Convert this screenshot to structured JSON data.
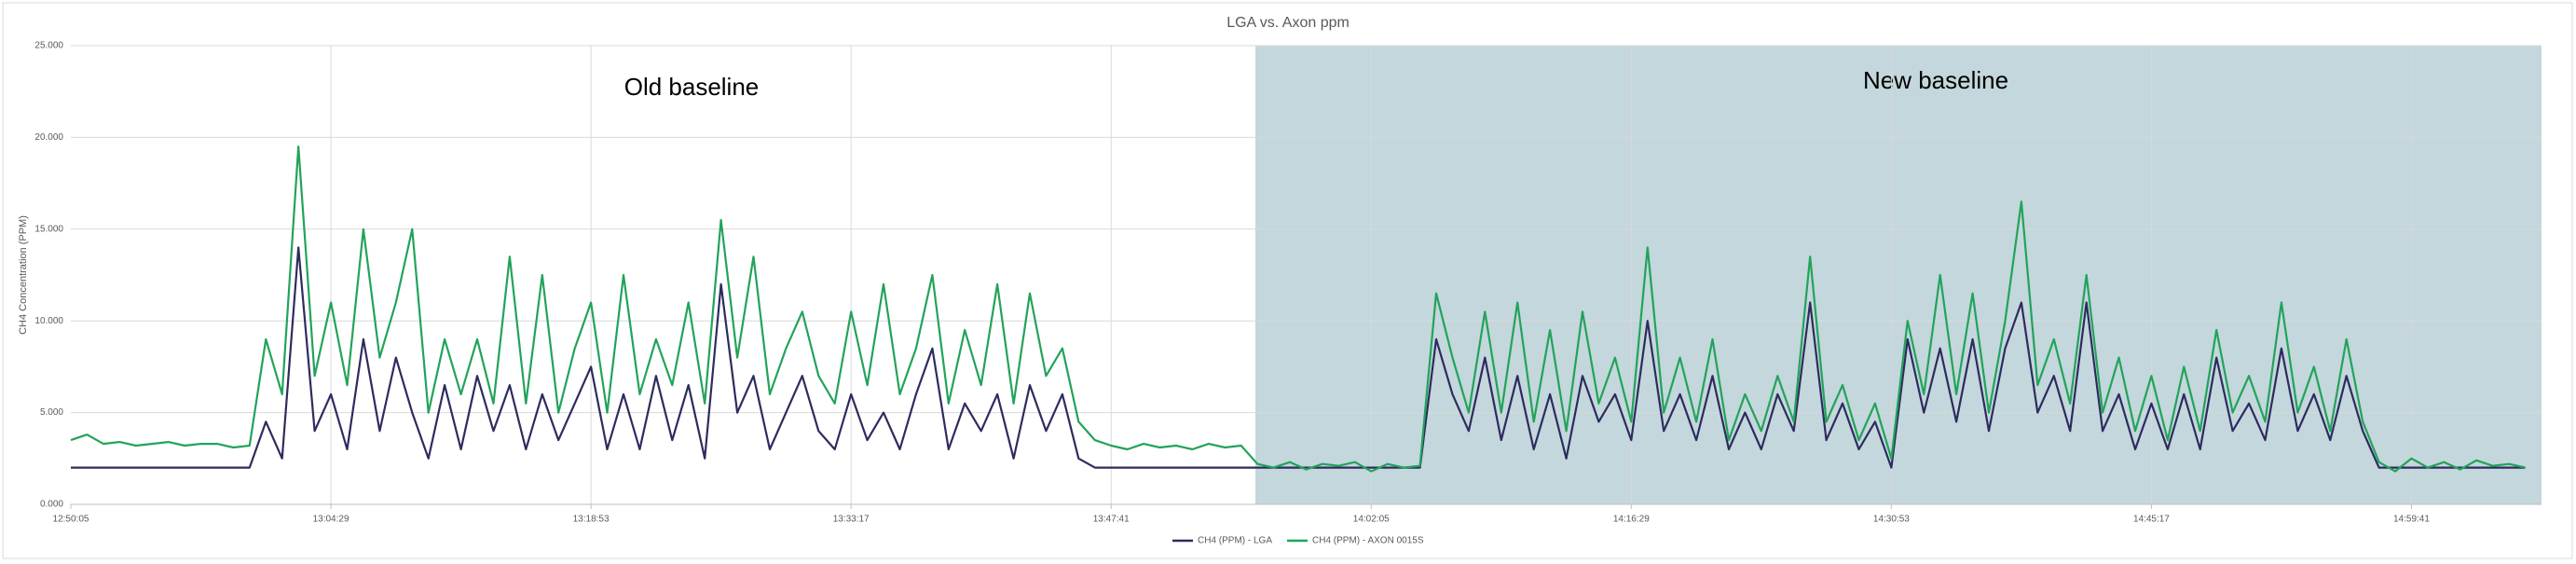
{
  "chart_data": {
    "type": "line",
    "title": "LGA vs. Axon ppm",
    "y_label": "CH4 Concentration (PPM)",
    "annotations": [
      "Old baseline",
      "New baseline"
    ],
    "x": [
      "12:50:05",
      null,
      null,
      null,
      null,
      null,
      null,
      null,
      null,
      null,
      null,
      null,
      null,
      null,
      null,
      null,
      "13:04:29",
      null,
      null,
      null,
      null,
      null,
      null,
      null,
      null,
      null,
      null,
      null,
      null,
      null,
      null,
      null,
      "13:18:53",
      null,
      null,
      null,
      null,
      null,
      null,
      null,
      null,
      null,
      null,
      null,
      null,
      null,
      null,
      null,
      "13:33:17",
      null,
      null,
      null,
      null,
      null,
      null,
      null,
      null,
      null,
      null,
      null,
      null,
      null,
      null,
      null,
      "13:47:41",
      null,
      null,
      null,
      null,
      null,
      null,
      null,
      null,
      null,
      null,
      null,
      null,
      null,
      null,
      null,
      "14:02:05",
      null,
      null,
      null,
      null,
      null,
      null,
      null,
      null,
      null,
      null,
      null,
      null,
      null,
      null,
      null,
      "14:16:29",
      null,
      null,
      null,
      null,
      null,
      null,
      null,
      null,
      null,
      null,
      null,
      null,
      null,
      null,
      null,
      "14:30:53",
      null,
      null,
      null,
      null,
      null,
      null,
      null,
      null,
      null,
      null,
      null,
      null,
      null,
      null,
      null,
      "14:45:17",
      null,
      null,
      null,
      null,
      null,
      null,
      null,
      null,
      null,
      null,
      null,
      null,
      null,
      null,
      null,
      "14:59:41",
      null,
      null,
      null,
      null,
      null,
      null,
      null
    ],
    "series": [
      {
        "name": "CH4 (PPM) - LGA",
        "color": "#2e2b5f",
        "values": [
          2000,
          2000,
          2000,
          2000,
          2000,
          2000,
          2000,
          2000,
          2000,
          2000,
          2000,
          2000,
          4500,
          2500,
          14000,
          4000,
          6000,
          3000,
          9000,
          4000,
          8000,
          5000,
          2500,
          6500,
          3000,
          7000,
          4000,
          6500,
          3000,
          6000,
          3500,
          5500,
          7500,
          3000,
          6000,
          3000,
          7000,
          3500,
          6500,
          2500,
          12000,
          5000,
          7000,
          3000,
          5000,
          7000,
          4000,
          3000,
          6000,
          3500,
          5000,
          3000,
          6000,
          8500,
          3000,
          5500,
          4000,
          6000,
          2500,
          6500,
          4000,
          6000,
          2500,
          2000,
          2000,
          2000,
          2000,
          2000,
          2000,
          2000,
          2000,
          2000,
          2000,
          2000,
          2000,
          2000,
          2000,
          2000,
          2000,
          2000,
          2000,
          2000,
          2000,
          2000,
          9000,
          6000,
          4000,
          8000,
          3500,
          7000,
          3000,
          6000,
          2500,
          7000,
          4500,
          6000,
          3500,
          10000,
          4000,
          6000,
          3500,
          7000,
          3000,
          5000,
          3000,
          6000,
          4000,
          11000,
          3500,
          5500,
          3000,
          4500,
          2000,
          9000,
          5000,
          8500,
          4500,
          9000,
          4000,
          8500,
          11000,
          5000,
          7000,
          4000,
          11000,
          4000,
          6000,
          3000,
          5500,
          3000,
          6000,
          3000,
          8000,
          4000,
          5500,
          3500,
          8500,
          4000,
          6000,
          3500,
          7000,
          4000,
          2000,
          2000,
          2000,
          2000,
          2000,
          2000,
          2000,
          2000,
          2000,
          2000
        ]
      },
      {
        "name": "CH4 (PPM) - AXON 0015S",
        "color": "#22a35a",
        "values": [
          3500,
          3800,
          3300,
          3400,
          3200,
          3300,
          3400,
          3200,
          3300,
          3300,
          3100,
          3200,
          9000,
          6000,
          19500,
          7000,
          11000,
          6500,
          15000,
          8000,
          11000,
          15000,
          5000,
          9000,
          6000,
          9000,
          5500,
          13500,
          5500,
          12500,
          5000,
          8500,
          11000,
          5000,
          12500,
          6000,
          9000,
          6500,
          11000,
          5500,
          15500,
          8000,
          13500,
          6000,
          8500,
          10500,
          7000,
          5500,
          10500,
          6500,
          12000,
          6000,
          8500,
          12500,
          5500,
          9500,
          6500,
          12000,
          5500,
          11500,
          7000,
          8500,
          4500,
          3500,
          3200,
          3000,
          3300,
          3100,
          3200,
          3000,
          3300,
          3100,
          3200,
          2200,
          2000,
          2300,
          1900,
          2200,
          2100,
          2300,
          1800,
          2200,
          2000,
          2100,
          11500,
          8000,
          5000,
          10500,
          5000,
          11000,
          4500,
          9500,
          4000,
          10500,
          5500,
          8000,
          4500,
          14000,
          5000,
          8000,
          4500,
          9000,
          3500,
          6000,
          4000,
          7000,
          4500,
          13500,
          4500,
          6500,
          3500,
          5500,
          2500,
          10000,
          6000,
          12500,
          6000,
          11500,
          5000,
          10000,
          16500,
          6500,
          9000,
          5500,
          12500,
          5000,
          8000,
          4000,
          7000,
          3500,
          7500,
          4000,
          9500,
          5000,
          7000,
          4500,
          11000,
          5000,
          7500,
          4000,
          9000,
          4500,
          2300,
          1800,
          2500,
          2000,
          2300,
          1900,
          2400,
          2100,
          2200,
          2000
        ]
      }
    ],
    "ylim": [
      0,
      25000
    ],
    "yticks": [
      {
        "value": 0,
        "label": "0.000"
      },
      {
        "value": 5000,
        "label": "5.000"
      },
      {
        "value": 10000,
        "label": "10.000"
      },
      {
        "value": 15000,
        "label": "15.000"
      },
      {
        "value": 20000,
        "label": "20.000"
      },
      {
        "value": 25000,
        "label": "25.000"
      }
    ],
    "grid": true,
    "legend": "bottom"
  }
}
